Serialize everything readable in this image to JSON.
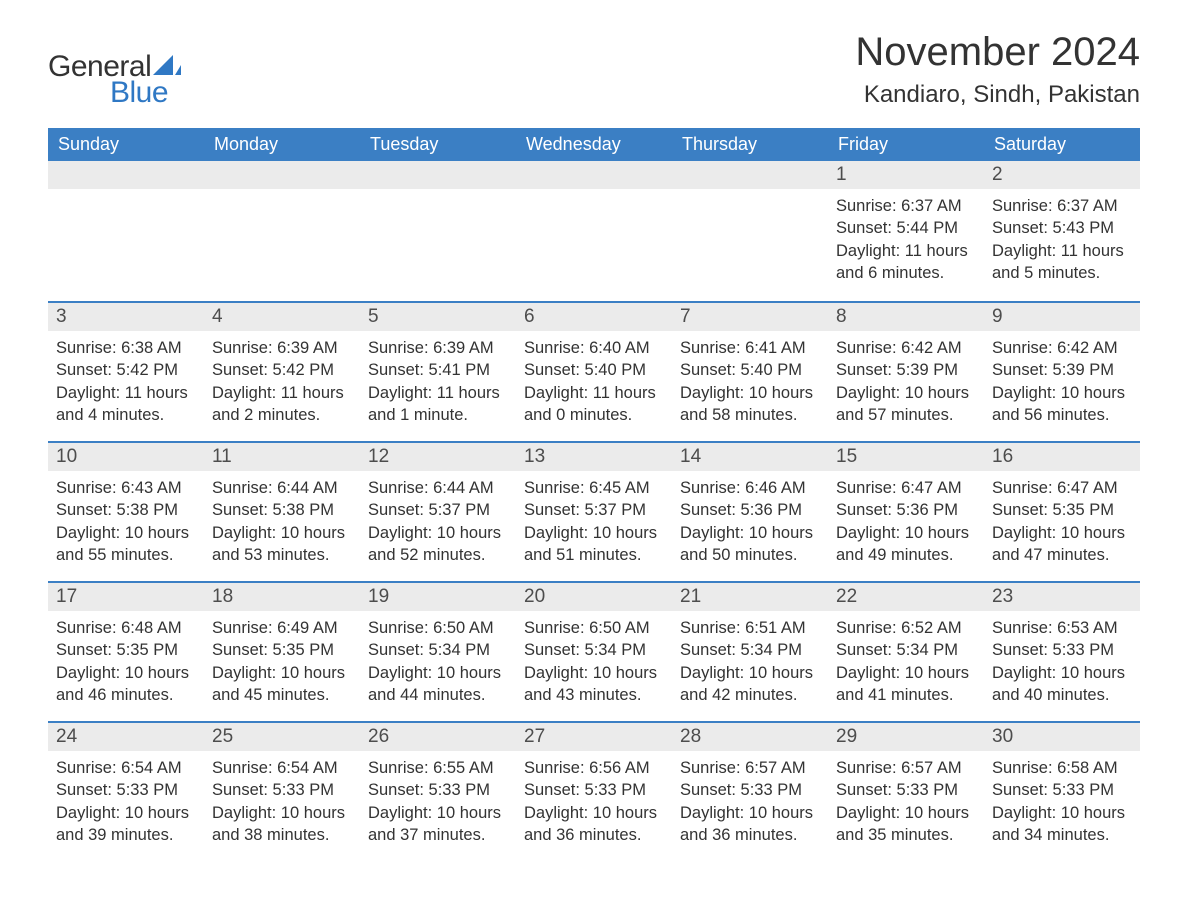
{
  "logo": {
    "general": "General",
    "blue": "Blue",
    "accent_color": "#2f78c4"
  },
  "header": {
    "month_title": "November 2024",
    "location": "Kandiaro, Sindh, Pakistan"
  },
  "colors": {
    "header_bg": "#3b7fc4",
    "header_text": "#ffffff",
    "daynum_bg": "#ebebeb",
    "daynum_border": "#3b7fc4",
    "text": "#333333",
    "background": "#ffffff"
  },
  "day_headers": [
    "Sunday",
    "Monday",
    "Tuesday",
    "Wednesday",
    "Thursday",
    "Friday",
    "Saturday"
  ],
  "weeks": [
    [
      {
        "empty": true
      },
      {
        "empty": true
      },
      {
        "empty": true
      },
      {
        "empty": true
      },
      {
        "empty": true
      },
      {
        "day": "1",
        "sunrise": "Sunrise: 6:37 AM",
        "sunset": "Sunset: 5:44 PM",
        "daylight": "Daylight: 11 hours and 6 minutes."
      },
      {
        "day": "2",
        "sunrise": "Sunrise: 6:37 AM",
        "sunset": "Sunset: 5:43 PM",
        "daylight": "Daylight: 11 hours and 5 minutes."
      }
    ],
    [
      {
        "day": "3",
        "sunrise": "Sunrise: 6:38 AM",
        "sunset": "Sunset: 5:42 PM",
        "daylight": "Daylight: 11 hours and 4 minutes."
      },
      {
        "day": "4",
        "sunrise": "Sunrise: 6:39 AM",
        "sunset": "Sunset: 5:42 PM",
        "daylight": "Daylight: 11 hours and 2 minutes."
      },
      {
        "day": "5",
        "sunrise": "Sunrise: 6:39 AM",
        "sunset": "Sunset: 5:41 PM",
        "daylight": "Daylight: 11 hours and 1 minute."
      },
      {
        "day": "6",
        "sunrise": "Sunrise: 6:40 AM",
        "sunset": "Sunset: 5:40 PM",
        "daylight": "Daylight: 11 hours and 0 minutes."
      },
      {
        "day": "7",
        "sunrise": "Sunrise: 6:41 AM",
        "sunset": "Sunset: 5:40 PM",
        "daylight": "Daylight: 10 hours and 58 minutes."
      },
      {
        "day": "8",
        "sunrise": "Sunrise: 6:42 AM",
        "sunset": "Sunset: 5:39 PM",
        "daylight": "Daylight: 10 hours and 57 minutes."
      },
      {
        "day": "9",
        "sunrise": "Sunrise: 6:42 AM",
        "sunset": "Sunset: 5:39 PM",
        "daylight": "Daylight: 10 hours and 56 minutes."
      }
    ],
    [
      {
        "day": "10",
        "sunrise": "Sunrise: 6:43 AM",
        "sunset": "Sunset: 5:38 PM",
        "daylight": "Daylight: 10 hours and 55 minutes."
      },
      {
        "day": "11",
        "sunrise": "Sunrise: 6:44 AM",
        "sunset": "Sunset: 5:38 PM",
        "daylight": "Daylight: 10 hours and 53 minutes."
      },
      {
        "day": "12",
        "sunrise": "Sunrise: 6:44 AM",
        "sunset": "Sunset: 5:37 PM",
        "daylight": "Daylight: 10 hours and 52 minutes."
      },
      {
        "day": "13",
        "sunrise": "Sunrise: 6:45 AM",
        "sunset": "Sunset: 5:37 PM",
        "daylight": "Daylight: 10 hours and 51 minutes."
      },
      {
        "day": "14",
        "sunrise": "Sunrise: 6:46 AM",
        "sunset": "Sunset: 5:36 PM",
        "daylight": "Daylight: 10 hours and 50 minutes."
      },
      {
        "day": "15",
        "sunrise": "Sunrise: 6:47 AM",
        "sunset": "Sunset: 5:36 PM",
        "daylight": "Daylight: 10 hours and 49 minutes."
      },
      {
        "day": "16",
        "sunrise": "Sunrise: 6:47 AM",
        "sunset": "Sunset: 5:35 PM",
        "daylight": "Daylight: 10 hours and 47 minutes."
      }
    ],
    [
      {
        "day": "17",
        "sunrise": "Sunrise: 6:48 AM",
        "sunset": "Sunset: 5:35 PM",
        "daylight": "Daylight: 10 hours and 46 minutes."
      },
      {
        "day": "18",
        "sunrise": "Sunrise: 6:49 AM",
        "sunset": "Sunset: 5:35 PM",
        "daylight": "Daylight: 10 hours and 45 minutes."
      },
      {
        "day": "19",
        "sunrise": "Sunrise: 6:50 AM",
        "sunset": "Sunset: 5:34 PM",
        "daylight": "Daylight: 10 hours and 44 minutes."
      },
      {
        "day": "20",
        "sunrise": "Sunrise: 6:50 AM",
        "sunset": "Sunset: 5:34 PM",
        "daylight": "Daylight: 10 hours and 43 minutes."
      },
      {
        "day": "21",
        "sunrise": "Sunrise: 6:51 AM",
        "sunset": "Sunset: 5:34 PM",
        "daylight": "Daylight: 10 hours and 42 minutes."
      },
      {
        "day": "22",
        "sunrise": "Sunrise: 6:52 AM",
        "sunset": "Sunset: 5:34 PM",
        "daylight": "Daylight: 10 hours and 41 minutes."
      },
      {
        "day": "23",
        "sunrise": "Sunrise: 6:53 AM",
        "sunset": "Sunset: 5:33 PM",
        "daylight": "Daylight: 10 hours and 40 minutes."
      }
    ],
    [
      {
        "day": "24",
        "sunrise": "Sunrise: 6:54 AM",
        "sunset": "Sunset: 5:33 PM",
        "daylight": "Daylight: 10 hours and 39 minutes."
      },
      {
        "day": "25",
        "sunrise": "Sunrise: 6:54 AM",
        "sunset": "Sunset: 5:33 PM",
        "daylight": "Daylight: 10 hours and 38 minutes."
      },
      {
        "day": "26",
        "sunrise": "Sunrise: 6:55 AM",
        "sunset": "Sunset: 5:33 PM",
        "daylight": "Daylight: 10 hours and 37 minutes."
      },
      {
        "day": "27",
        "sunrise": "Sunrise: 6:56 AM",
        "sunset": "Sunset: 5:33 PM",
        "daylight": "Daylight: 10 hours and 36 minutes."
      },
      {
        "day": "28",
        "sunrise": "Sunrise: 6:57 AM",
        "sunset": "Sunset: 5:33 PM",
        "daylight": "Daylight: 10 hours and 36 minutes."
      },
      {
        "day": "29",
        "sunrise": "Sunrise: 6:57 AM",
        "sunset": "Sunset: 5:33 PM",
        "daylight": "Daylight: 10 hours and 35 minutes."
      },
      {
        "day": "30",
        "sunrise": "Sunrise: 6:58 AM",
        "sunset": "Sunset: 5:33 PM",
        "daylight": "Daylight: 10 hours and 34 minutes."
      }
    ]
  ]
}
